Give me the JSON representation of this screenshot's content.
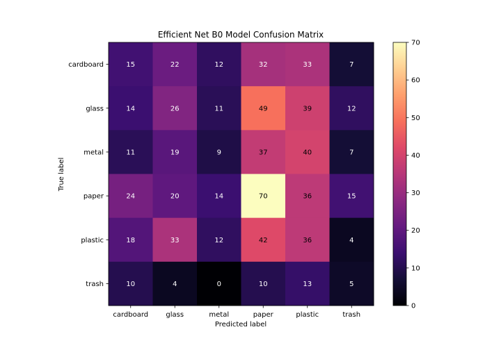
{
  "chart_data": {
    "type": "heatmap",
    "title": "Efficient Net B0 Model Confusion Matrix",
    "xlabel": "Predicted label",
    "ylabel": "True label",
    "x_categories": [
      "cardboard",
      "glass",
      "metal",
      "paper",
      "plastic",
      "trash"
    ],
    "y_categories": [
      "cardboard",
      "glass",
      "metal",
      "paper",
      "plastic",
      "trash"
    ],
    "values": [
      [
        15,
        22,
        12,
        32,
        33,
        7
      ],
      [
        14,
        26,
        11,
        49,
        39,
        12
      ],
      [
        11,
        19,
        9,
        37,
        40,
        7
      ],
      [
        24,
        20,
        14,
        70,
        36,
        15
      ],
      [
        18,
        33,
        12,
        42,
        36,
        4
      ],
      [
        10,
        4,
        0,
        10,
        13,
        5
      ]
    ],
    "colormap": "magma",
    "color_range": [
      0,
      70
    ],
    "colorbar_ticks": [
      0,
      10,
      20,
      30,
      40,
      50,
      60,
      70
    ]
  }
}
